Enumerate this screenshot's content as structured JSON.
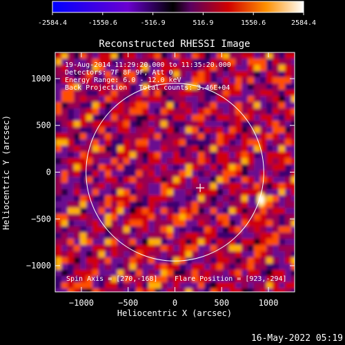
{
  "colorbar": {
    "ticks": [
      "-2584.4",
      "-1550.6",
      "-516.9",
      "516.9",
      "1550.6",
      "2584.4"
    ],
    "stops": [
      "#0000ff",
      "#ff00ff",
      "#ffffff",
      "#ffff00"
    ]
  },
  "chart_data": {
    "type": "heatmap",
    "title": "Reconstructed RHESSI Image",
    "xlabel": "Heliocentric X (arcsec)",
    "ylabel": "Heliocentric Y (arcsec)",
    "xlim": [
      -1280,
      1280
    ],
    "ylim": [
      -1280,
      1280
    ],
    "zlim": [
      -2584.4,
      2584.4
    ],
    "x_ticks": [
      -1000,
      -500,
      0,
      500,
      1000
    ],
    "y_ticks": [
      -1000,
      -500,
      0,
      500,
      1000
    ],
    "annotations": [
      "19-Aug-2014 11:29:20.000 to 11:35:20.000",
      "Detectors: 7F 8F 9F, Att 0",
      "Energy Range: 6.0 - 12.0 keV",
      "Back Projection",
      "Total counts: 3.46E+04"
    ],
    "footer": {
      "spin_axis": "Spin Axis = [270,-168]",
      "flare_position": "Flare Position = [923,-294]"
    },
    "solar_limb_radius_arcsec": 950,
    "cross_marker": [
      270,
      -168
    ],
    "bright_source": [
      923,
      -294
    ]
  },
  "timestamp": "16-May-2022 05:19"
}
